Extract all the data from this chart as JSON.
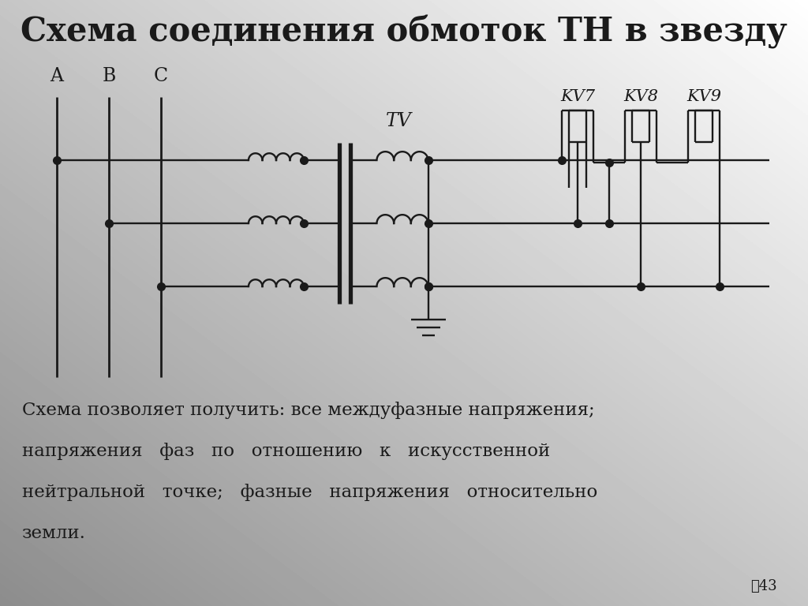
{
  "title": "Схема соединения обмоток ТН в звезду",
  "title_fontsize": 30,
  "body_text_lines": [
    "Схема позволяет получить: все междуфазные напряжения;",
    "напряжения   фаз   по   отношению   к   искусственной",
    "нейтральной   точке;   фазные   напряжения   относительно",
    "земли."
  ],
  "page_number": "⁃43",
  "bg_color": "#d8d8d8",
  "line_color": "#1a1a1a",
  "text_color": "#1a1a1a",
  "label_A": "A",
  "label_B": "B",
  "label_C": "C",
  "label_TV": "TV",
  "label_KV7": "KV7",
  "label_KV8": "KV8",
  "label_KV9": "KV9"
}
